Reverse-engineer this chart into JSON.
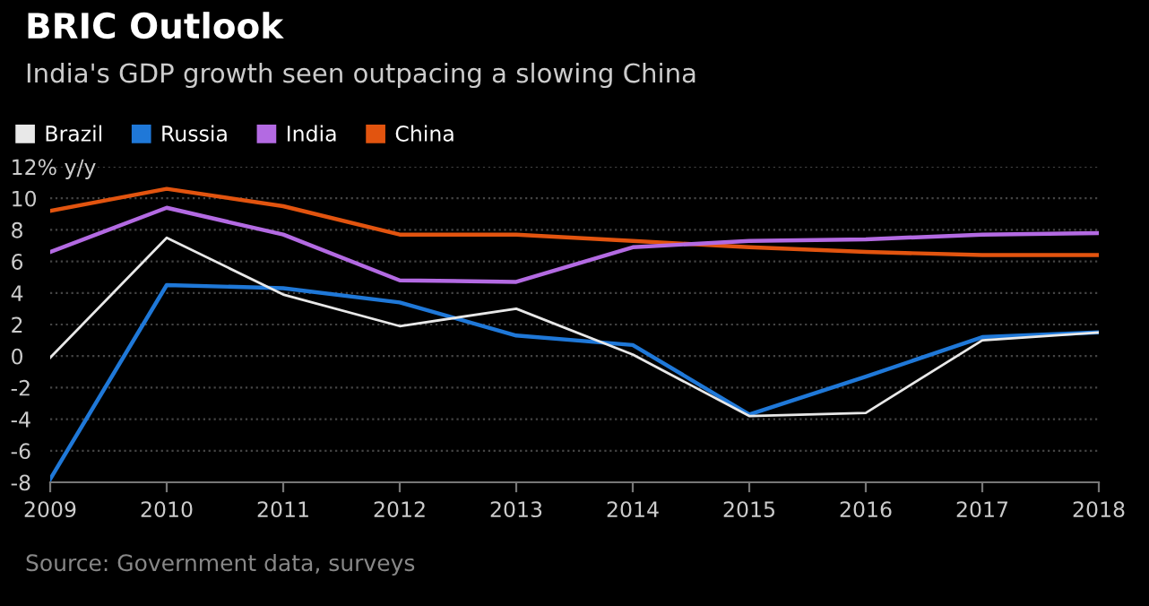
{
  "chart_data": {
    "type": "line",
    "title": "BRIC Outlook",
    "subtitle": "India's GDP growth seen outpacing a slowing China",
    "x": [
      2009,
      2010,
      2011,
      2012,
      2013,
      2014,
      2015,
      2016,
      2017,
      2018
    ],
    "series": [
      {
        "name": "Brazil",
        "color": "#e8e8e8",
        "values": [
          -0.1,
          7.5,
          3.9,
          1.9,
          3.0,
          0.1,
          -3.8,
          -3.6,
          1.0,
          1.5
        ]
      },
      {
        "name": "Russia",
        "color": "#1f78d8",
        "values": [
          -7.8,
          4.5,
          4.3,
          3.4,
          1.3,
          0.7,
          -3.7,
          -1.3,
          1.2,
          1.5
        ]
      },
      {
        "name": "India",
        "color": "#b36ae2",
        "values": [
          6.6,
          9.4,
          7.7,
          4.8,
          4.7,
          6.9,
          7.3,
          7.4,
          7.7,
          7.8
        ]
      },
      {
        "name": "China",
        "color": "#e2540f",
        "values": [
          9.2,
          10.6,
          9.5,
          7.7,
          7.7,
          7.3,
          6.9,
          6.6,
          6.4,
          6.4
        ]
      }
    ],
    "xlim": [
      2009,
      2018
    ],
    "xticks": [
      2009,
      2010,
      2011,
      2012,
      2013,
      2014,
      2015,
      2016,
      2017,
      2018
    ],
    "ylim": [
      -8,
      12
    ],
    "yticks": [
      -8,
      -6,
      -4,
      -2,
      0,
      2,
      4,
      6,
      8,
      10,
      {
        "value": 12,
        "label": "12% y/y"
      }
    ],
    "grid": "y",
    "legend": "top left",
    "marker": "none",
    "line_style": "solid",
    "annotations": [
      "Source: Government data, surveys"
    ]
  }
}
